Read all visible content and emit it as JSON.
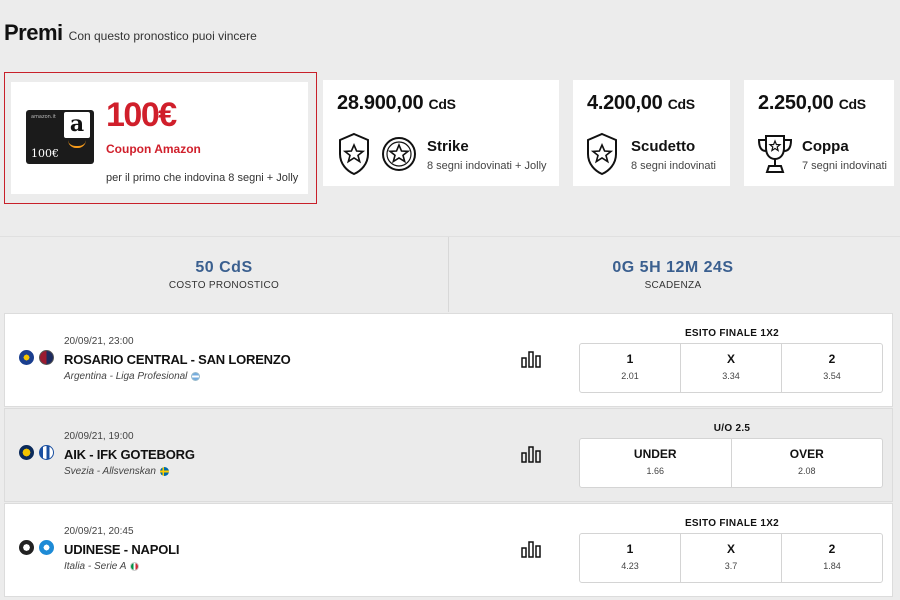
{
  "header": {
    "title": "Premi",
    "subtitle": "Con questo pronostico puoi vincere"
  },
  "prizes": {
    "amazon": {
      "gift_text": "amazon.it",
      "gift_value": "100€",
      "amount": "100€",
      "coupon": "Coupon Amazon",
      "desc": "per il primo che indovina 8 segni + Jolly"
    },
    "strike": {
      "amount": "28.900,00",
      "unit": "CdS",
      "name": "Strike",
      "desc": "8 segni indovinati + Jolly"
    },
    "scudetto": {
      "amount": "4.200,00",
      "unit": "CdS",
      "name": "Scudetto",
      "desc": "8 segni indovinati"
    },
    "coppa": {
      "amount": "2.250,00",
      "unit": "CdS",
      "name": "Coppa",
      "desc": "7 segni indovinati"
    }
  },
  "info": {
    "cost_value": "50 CdS",
    "cost_label": "COSTO PRONOSTICO",
    "deadline_value": "0G 5H 12M 24S",
    "deadline_label": "SCADENZA"
  },
  "matches": [
    {
      "date": "20/09/21, 23:00",
      "teams": "ROSARIO CENTRAL - SAN LORENZO",
      "league": "Argentina - Liga Profesional",
      "bet_title": "ESITO FINALE 1X2",
      "odds": [
        {
          "label": "1",
          "value": "2.01"
        },
        {
          "label": "X",
          "value": "3.34"
        },
        {
          "label": "2",
          "value": "3.54"
        }
      ]
    },
    {
      "date": "20/09/21, 19:00",
      "teams": "AIK - IFK GOTEBORG",
      "league": "Svezia - Allsvenskan",
      "bet_title": "U/O 2.5",
      "odds": [
        {
          "label": "UNDER",
          "value": "1.66"
        },
        {
          "label": "OVER",
          "value": "2.08"
        }
      ]
    },
    {
      "date": "20/09/21, 20:45",
      "teams": "UDINESE - NAPOLI",
      "league": "Italia - Serie A",
      "bet_title": "ESITO FINALE 1X2",
      "odds": [
        {
          "label": "1",
          "value": "4.23"
        },
        {
          "label": "X",
          "value": "3.7"
        },
        {
          "label": "2",
          "value": "1.84"
        }
      ]
    }
  ],
  "colors": {
    "accent_red": "#d01f2b",
    "info_blue": "#3a5f8f",
    "page_bg": "#ececec"
  }
}
